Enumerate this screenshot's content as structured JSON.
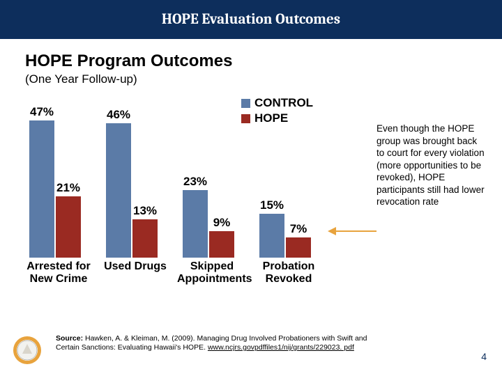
{
  "header": {
    "title": "HOPE Evaluation Outcomes"
  },
  "chart": {
    "title": "HOPE Program Outcomes",
    "subtitle": "(One Year Follow-up)",
    "type": "bar",
    "ymax": 50,
    "colors": {
      "control": "#5b7ba7",
      "hope": "#9a2a22"
    },
    "legend": [
      {
        "label": "CONTROL",
        "key": "control"
      },
      {
        "label": "HOPE",
        "key": "hope"
      }
    ],
    "categories": [
      {
        "label": "Arrested for\nNew Crime",
        "control": 47,
        "hope": 21,
        "control_label": "47%",
        "hope_label": "21%"
      },
      {
        "label": "Used Drugs",
        "control": 46,
        "hope": 13,
        "control_label": "46%",
        "hope_label": "13%"
      },
      {
        "label": "Skipped\nAppointments",
        "control": 23,
        "hope": 9,
        "control_label": "23%",
        "hope_label": "9%"
      },
      {
        "label": "Probation\nRevoked",
        "control": 15,
        "hope": 7,
        "control_label": "15%",
        "hope_label": "7%"
      }
    ]
  },
  "callout": {
    "text": "Even though the HOPE group was brought back to court for every violation (more opportunities to be revoked), HOPE participants still had lower revocation rate",
    "arrow_color": "#e8a33d"
  },
  "source": {
    "prefix": "Source:",
    "citation": " Hawken, A. & Kleiman, M. (2009). Managing Drug Involved Probationers with Swift and Certain Sanctions: Evaluating Hawaii's HOPE. ",
    "link": "www.ncjrs.govpdffiles1/nij/grants/229023. pdf"
  },
  "page_number": "4",
  "seal": {
    "ring_color": "#e8a33d",
    "inner_color": "#f2f2ef"
  }
}
